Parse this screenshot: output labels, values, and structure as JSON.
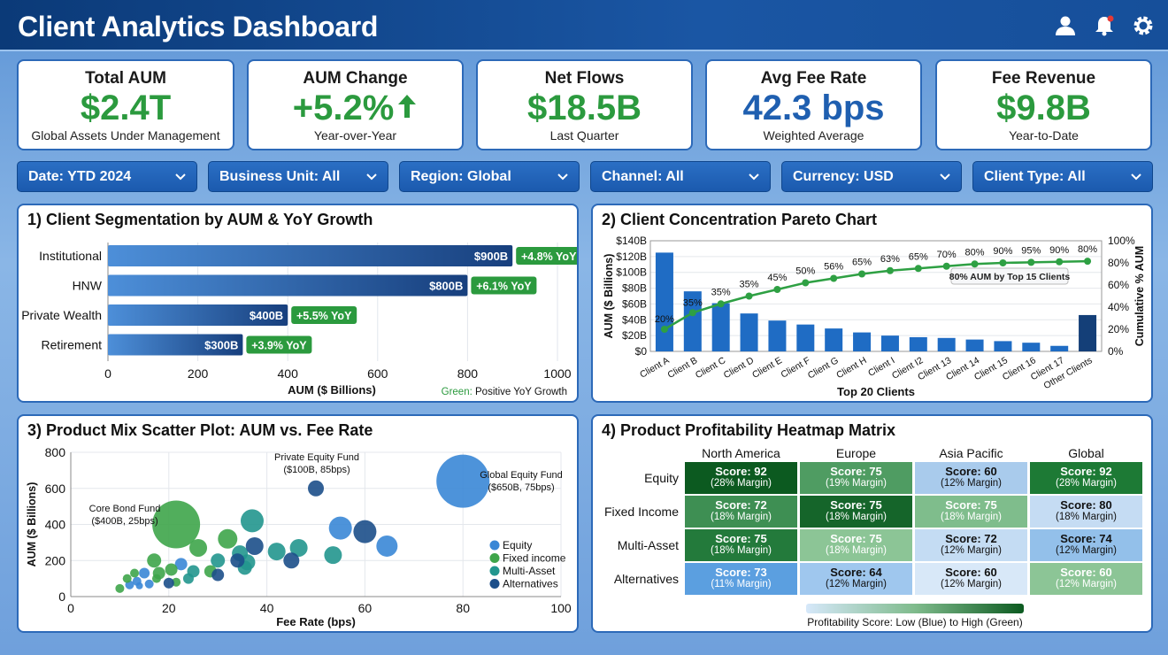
{
  "header": {
    "title": "Client Analytics Dashboard",
    "icons": [
      "user-icon",
      "bell-icon",
      "gear-icon"
    ]
  },
  "kpis": [
    {
      "title": "Total AUM",
      "value": "$2.4T",
      "sub": "Global Assets Under Management",
      "color": "#2b9a3e"
    },
    {
      "title": "AUM Change",
      "value": "+5.2%",
      "sub": "Year-over-Year",
      "color": "#2b9a3e",
      "icon": "arrow-up-icon"
    },
    {
      "title": "Net Flows",
      "value": "$18.5B",
      "sub": "Last Quarter",
      "color": "#2b9a3e"
    },
    {
      "title": "Avg Fee Rate",
      "value": "42.3 bps",
      "sub": "Weighted Average",
      "color": "#1f5fb0"
    },
    {
      "title": "Fee Revenue",
      "value": "$9.8B",
      "sub": "Year-to-Date",
      "color": "#2b9a3e"
    }
  ],
  "filters": [
    "Date: YTD 2024",
    "Business Unit: All",
    "Region: Global",
    "Channel: All",
    "Currency: USD",
    "Client Type: All"
  ],
  "chart_data": [
    {
      "type": "bar",
      "title": "1) Client Segmentation by AUM & YoY Growth",
      "categories": [
        "Institutional",
        "HNW",
        "Private Wealth",
        "Retirement"
      ],
      "values": [
        900,
        800,
        400,
        300
      ],
      "value_labels": [
        "$900B",
        "$800B",
        "$400B",
        "$300B"
      ],
      "growth_labels": [
        "+4.8% YoY",
        "+6.1% YoY",
        "+5.5% YoY",
        "+3.9% YoY"
      ],
      "xlabel": "AUM ($ Billions)",
      "xlim": [
        0,
        1000
      ],
      "xticks": [
        0,
        200,
        400,
        600,
        800,
        1000
      ],
      "note_prefix": "Green:",
      "note": " Positive YoY Growth",
      "bar_color": "#1e5fae",
      "growth_color": "#2b9a3e"
    },
    {
      "type": "pareto",
      "title": "2) Client Concentration Pareto Chart",
      "categories": [
        "Client A",
        "Client B",
        "Client C",
        "Client D",
        "Client E",
        "Client F",
        "Client G",
        "Client H",
        "Client I",
        "Client I2",
        "Client 13",
        "Client 14",
        "Client 15",
        "Client 16",
        "Client 17",
        "Other Clients"
      ],
      "values": [
        125,
        76,
        61,
        48,
        39,
        34,
        29,
        24,
        20,
        18,
        17,
        15,
        13,
        11,
        7,
        46
      ],
      "cumulative": [
        20,
        35,
        43,
        50,
        56,
        62,
        66,
        70,
        73,
        75,
        77,
        79,
        80,
        80.5,
        81,
        81.5
      ],
      "cumulative_labels": [
        "20%",
        "35%",
        "35%",
        "35%",
        "45%",
        "50%",
        "56%",
        "65%",
        "63%",
        "65%",
        "70%",
        "80%",
        "90%",
        "95%",
        "90%",
        "80%"
      ],
      "ylabel": "AUM ($ Billions)",
      "y2label": "Cumulative % AUM",
      "xlabel": "Top 20 Clients",
      "ylim": [
        0,
        140
      ],
      "yticks": [
        "$0",
        "$20B",
        "$40B",
        "$60B",
        "$80B",
        "$100B",
        "$120B",
        "$140B"
      ],
      "y2ticks": [
        "0%",
        "20%",
        "40%",
        "60%",
        "80%",
        "100%"
      ],
      "annotation": "80% AUM by Top 15 Clients",
      "bar_color": "#1f6cc4",
      "line_color": "#2ea043"
    },
    {
      "type": "scatter",
      "title": "3) Product Mix Scatter Plot: AUM vs. Fee Rate",
      "xlabel": "Fee Rate (bps)",
      "ylabel": "AUM ($ Billions)",
      "xlim": [
        0,
        100
      ],
      "ylim": [
        0,
        800
      ],
      "xticks": [
        0,
        20,
        40,
        60,
        80,
        100
      ],
      "yticks": [
        0,
        200,
        400,
        600,
        800
      ],
      "legend": "right",
      "series": [
        {
          "name": "Equity",
          "color": "#3a87d6",
          "points": [
            [
              80,
              640,
              30
            ],
            [
              55,
              380,
              13
            ],
            [
              64.5,
              280,
              12
            ],
            [
              15,
              130,
              6
            ],
            [
              12,
              65,
              5
            ],
            [
              14,
              60,
              4
            ],
            [
              13.5,
              85,
              5
            ],
            [
              16,
              70,
              5
            ],
            [
              22.5,
              180,
              7
            ]
          ]
        },
        {
          "name": "Fixed income",
          "color": "#3ea54a",
          "points": [
            [
              21.5,
              400,
              27
            ],
            [
              32,
              320,
              11
            ],
            [
              26,
              270,
              10
            ],
            [
              17,
              200,
              8
            ],
            [
              20.5,
              150,
              7
            ],
            [
              18,
              130,
              7
            ],
            [
              11.5,
              100,
              5
            ],
            [
              13,
              130,
              5
            ],
            [
              17.5,
              100,
              5
            ],
            [
              10,
              45,
              5
            ],
            [
              21.5,
              80,
              5
            ],
            [
              28.5,
              140,
              7
            ]
          ]
        },
        {
          "name": "Multi-Asset",
          "color": "#22968e",
          "points": [
            [
              37,
              420,
              13
            ],
            [
              34.5,
              240,
              9
            ],
            [
              36,
              190,
              9
            ],
            [
              35.5,
              160,
              8
            ],
            [
              42,
              250,
              10
            ],
            [
              46.5,
              270,
              10
            ],
            [
              53.5,
              230,
              10
            ],
            [
              30,
              200,
              8
            ],
            [
              25,
              140,
              7
            ],
            [
              24,
              100,
              6
            ]
          ]
        },
        {
          "name": "Alternatives",
          "color": "#1c4f8a",
          "points": [
            [
              50,
              600,
              9
            ],
            [
              60,
              360,
              13
            ],
            [
              37.5,
              280,
              10
            ],
            [
              45,
              200,
              9
            ],
            [
              34,
              200,
              8
            ],
            [
              30,
              120,
              7
            ],
            [
              20,
              75,
              6
            ]
          ]
        }
      ],
      "annotations": [
        {
          "title": "Core Bond Fund",
          "detail": "($400B, 25bps)"
        },
        {
          "title": "Private Equity Fund",
          "detail": "($100B, 85bps)"
        },
        {
          "title": "Global Equity Fund",
          "detail": "($650B, 75bps)"
        }
      ]
    },
    {
      "type": "heatmap",
      "title": "4) Product Profitability Heatmap Matrix",
      "columns": [
        "North America",
        "Europe",
        "Asia Pacific",
        "Global"
      ],
      "rows": [
        "Equity",
        "Fixed Income",
        "Multi-Asset",
        "Alternatives"
      ],
      "cells": [
        [
          {
            "score": "Score: 92",
            "margin": "(28% Margin)",
            "color": "#0c5a20"
          },
          {
            "score": "Score: 75",
            "margin": "(19% Margin)",
            "color": "#4f9c62"
          },
          {
            "score": "Score: 60",
            "margin": "(12% Margin)",
            "color": "#a9cbec"
          },
          {
            "score": "Score: 92",
            "margin": "(28% Margin)",
            "color": "#1d7a35"
          }
        ],
        [
          {
            "score": "Score: 72",
            "margin": "(18% Margin)",
            "color": "#3e8f53"
          },
          {
            "score": "Score: 75",
            "margin": "(18% Margin)",
            "color": "#15652a"
          },
          {
            "score": "Score: 75",
            "margin": "(18% Margin)",
            "color": "#7fbd8c"
          },
          {
            "score": "Score: 80",
            "margin": "(18% Margin)",
            "color": "#c5dcf3"
          }
        ],
        [
          {
            "score": "Score: 75",
            "margin": "(18% Margin)",
            "color": "#237a3b"
          },
          {
            "score": "Score: 75",
            "margin": "(18% Margin)",
            "color": "#8cc596"
          },
          {
            "score": "Score: 72",
            "margin": "(12% Margin)",
            "color": "#c4dcf3"
          },
          {
            "score": "Score: 74",
            "margin": "(12% Margin)",
            "color": "#93c0ea"
          }
        ],
        [
          {
            "score": "Score: 73",
            "margin": "(11% Margin)",
            "color": "#5b9fe0"
          },
          {
            "score": "Score: 64",
            "margin": "(12% Margin)",
            "color": "#9fc7ee"
          },
          {
            "score": "Score: 60",
            "margin": "(12% Margin)",
            "color": "#d8e8f8"
          },
          {
            "score": "Score: 60",
            "margin": "(12% Margin)",
            "color": "#8cc596"
          }
        ]
      ],
      "legend_label": "Profitability Score: Low (Blue) to High (Green)",
      "scale": [
        "#d6e8fa",
        "#0c5a20"
      ]
    }
  ]
}
